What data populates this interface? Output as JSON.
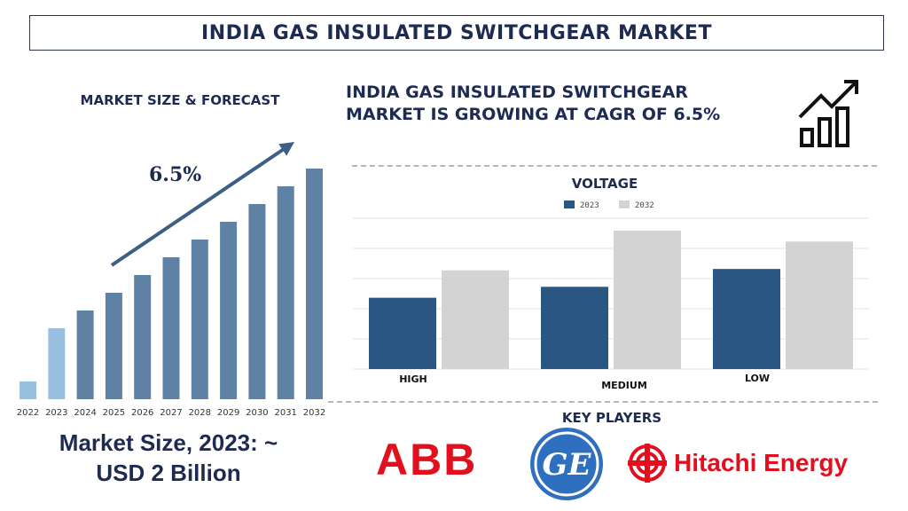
{
  "header": {
    "title": "INDIA GAS INSULATED SWITCHGEAR MARKET"
  },
  "left_panel": {
    "heading": "MARKET SIZE & FORECAST",
    "cagr_label": "6.5%",
    "market_size_line1": "Market Size, 2023: ~",
    "market_size_line2": "USD 2 Billion"
  },
  "right_panel": {
    "cagr_heading_line1": "INDIA GAS INSULATED SWITCHGEAR",
    "cagr_heading_line2": "MARKET IS GROWING AT CAGR OF 6.5%",
    "key_players_heading": "KEY PLAYERS",
    "logos": {
      "abb": "ABB",
      "ge": "GE",
      "hitachi": "Hitachi Energy"
    }
  },
  "colors": {
    "title_text": "#1d2b52",
    "bar_light": "#9bbfe0",
    "bar_dark": "#5f81a3",
    "arrow": "#3b5f85",
    "series_2023": "#2a5683",
    "series_2032": "#d3d3d3",
    "brand_red": "#e2101f",
    "ge_blue": "#2f6fc0"
  },
  "chart_data": [
    {
      "type": "bar",
      "categories": [
        "2022",
        "2023",
        "2024",
        "2025",
        "2026",
        "2027",
        "2028",
        "2029",
        "2030",
        "2031",
        "2032"
      ],
      "values": [
        1.0,
        4.0,
        5.0,
        6.0,
        7.0,
        8.0,
        9.0,
        10.0,
        11.0,
        12.0,
        13.0
      ],
      "highlight_count": 2,
      "title": "",
      "xlabel": "",
      "ylabel": "",
      "ylim": [
        0,
        14
      ],
      "grid": false,
      "legend": "none"
    },
    {
      "type": "bar",
      "title": "VOLTAGE",
      "categories": [
        "HIGH",
        "MEDIUM",
        "LOW"
      ],
      "series": [
        {
          "name": "2023",
          "values": [
            52,
            60,
            73
          ]
        },
        {
          "name": "2032",
          "values": [
            72,
            101,
            93
          ]
        }
      ],
      "ylim": [
        0,
        110
      ],
      "grid": true,
      "legend": "top-center"
    }
  ]
}
